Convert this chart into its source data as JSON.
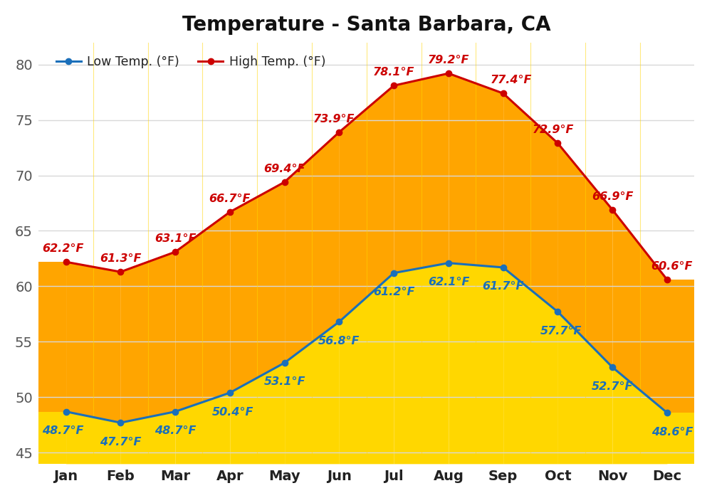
{
  "title": "Temperature - Santa Barbara, CA",
  "months": [
    "Jan",
    "Feb",
    "Mar",
    "Apr",
    "May",
    "Jun",
    "Jul",
    "Aug",
    "Sep",
    "Oct",
    "Nov",
    "Dec"
  ],
  "high_temps": [
    62.2,
    61.3,
    63.1,
    66.7,
    69.4,
    73.9,
    78.1,
    79.2,
    77.4,
    72.9,
    66.9,
    60.6
  ],
  "low_temps": [
    48.7,
    47.7,
    48.7,
    50.4,
    53.1,
    56.8,
    61.2,
    62.1,
    61.7,
    57.7,
    52.7,
    48.6
  ],
  "high_color": "#cc0000",
  "low_color": "#1a6fba",
  "fill_orange_color": "#FFA500",
  "fill_yellow_color": "#FFD700",
  "ylim": [
    44,
    82
  ],
  "yticks": [
    45,
    50,
    55,
    60,
    65,
    70,
    75,
    80
  ],
  "background_color": "#ffffff",
  "plot_bg_color": "#ffffff",
  "grid_color": "#d8d8d8",
  "title_fontsize": 20,
  "annot_fontsize": 11.5,
  "tick_fontsize": 14,
  "legend_fontsize": 12.5
}
